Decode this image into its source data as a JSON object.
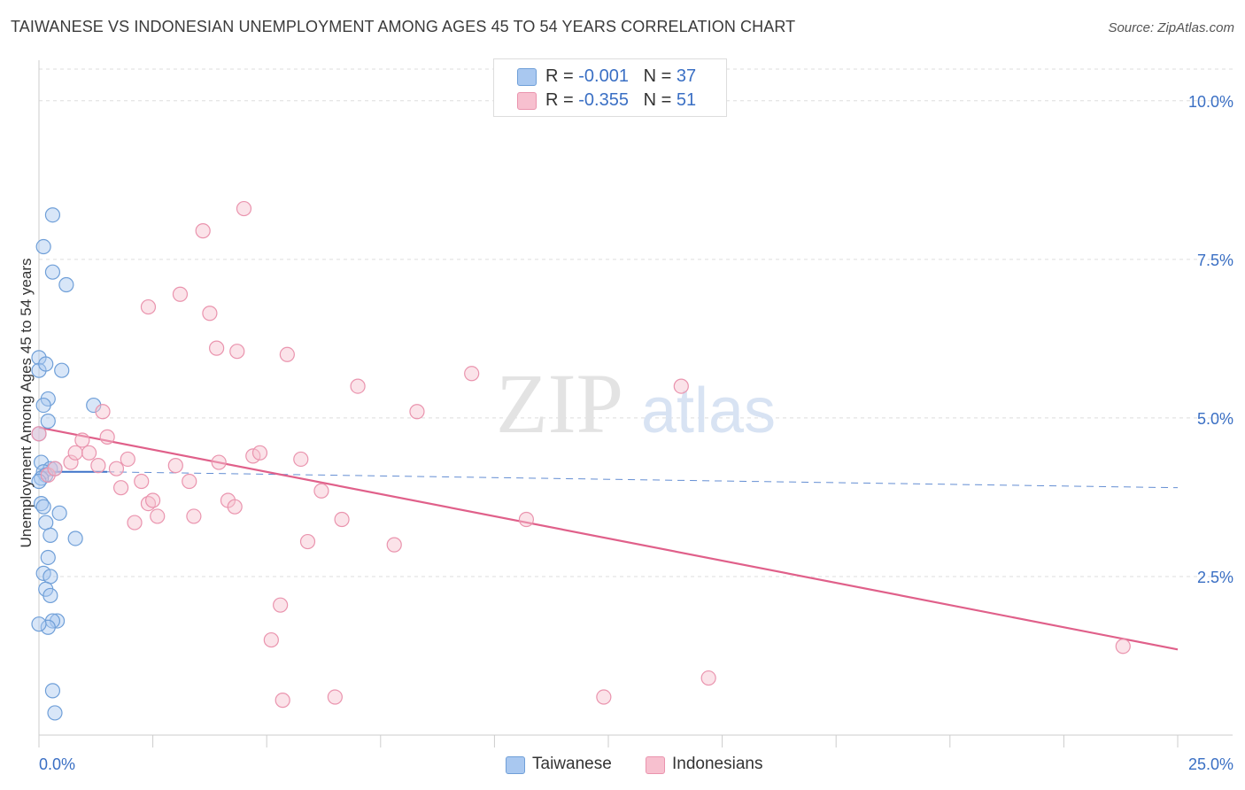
{
  "header": {
    "title": "TAIWANESE VS INDONESIAN UNEMPLOYMENT AMONG AGES 45 TO 54 YEARS CORRELATION CHART",
    "source": "Source: ZipAtlas.com"
  },
  "legend": {
    "rows": [
      {
        "r_label": "R = ",
        "r_value": "-0.001",
        "n_label": "N = ",
        "n_value": "37"
      },
      {
        "r_label": "R = ",
        "r_value": "-0.355",
        "n_label": "N = ",
        "n_value": "51"
      }
    ]
  },
  "watermark": {
    "zip": "ZIP",
    "atlas": "atlas"
  },
  "colors": {
    "taiwanese_fill": "#a9c8f0",
    "taiwanese_stroke": "#6f9fd8",
    "taiwanese_line": "#3d72c8",
    "indonesian_fill": "#f7c0cf",
    "indonesian_stroke": "#ea94ae",
    "indonesian_line": "#e0608a",
    "tick_label": "#3a6fc4",
    "grid": "#dddddd"
  },
  "chart_data": {
    "type": "scatter",
    "title": "TAIWANESE VS INDONESIAN UNEMPLOYMENT AMONG AGES 45 TO 54 YEARS CORRELATION CHART",
    "xlabel": "",
    "ylabel": "Unemployment Among Ages 45 to 54 years",
    "xlim": [
      0,
      25
    ],
    "ylim": [
      0,
      10.5
    ],
    "x_tick_labels": [
      "0.0%",
      "25.0%"
    ],
    "y_ticks": [
      2.5,
      5.0,
      7.5,
      10.0
    ],
    "y_tick_labels": [
      "2.5%",
      "5.0%",
      "7.5%",
      "10.0%"
    ],
    "grid": true,
    "legend_position": "bottom-center",
    "series": [
      {
        "name": "Taiwanese",
        "r": -0.001,
        "n": 37,
        "trend": {
          "x": [
            0.0,
            1.5
          ],
          "y": [
            4.15,
            4.15
          ],
          "dashed_extension": {
            "x": [
              1.5,
              25.0
            ],
            "y": [
              4.15,
              3.9
            ]
          }
        },
        "points": [
          [
            0.3,
            8.2
          ],
          [
            0.1,
            7.7
          ],
          [
            0.3,
            7.3
          ],
          [
            0.6,
            7.1
          ],
          [
            0.0,
            5.95
          ],
          [
            0.0,
            5.75
          ],
          [
            0.5,
            5.75
          ],
          [
            0.15,
            5.85
          ],
          [
            0.2,
            5.3
          ],
          [
            0.1,
            5.2
          ],
          [
            1.2,
            5.2
          ],
          [
            0.2,
            4.95
          ],
          [
            0.0,
            4.75
          ],
          [
            0.05,
            4.3
          ],
          [
            0.25,
            4.2
          ],
          [
            0.1,
            4.15
          ],
          [
            0.35,
            4.2
          ],
          [
            0.15,
            4.1
          ],
          [
            0.05,
            4.05
          ],
          [
            0.0,
            4.0
          ],
          [
            0.05,
            3.65
          ],
          [
            0.1,
            3.6
          ],
          [
            0.45,
            3.5
          ],
          [
            0.15,
            3.35
          ],
          [
            0.25,
            3.15
          ],
          [
            0.8,
            3.1
          ],
          [
            0.2,
            2.8
          ],
          [
            0.1,
            2.55
          ],
          [
            0.25,
            2.5
          ],
          [
            0.15,
            2.3
          ],
          [
            0.25,
            2.2
          ],
          [
            0.4,
            1.8
          ],
          [
            0.3,
            1.8
          ],
          [
            0.2,
            1.7
          ],
          [
            0.3,
            0.7
          ],
          [
            0.35,
            0.35
          ],
          [
            0.0,
            1.75
          ]
        ]
      },
      {
        "name": "Indonesians",
        "r": -0.355,
        "n": 51,
        "trend": {
          "x": [
            0.0,
            25.0
          ],
          "y": [
            4.85,
            1.35
          ]
        },
        "points": [
          [
            0.0,
            4.75
          ],
          [
            0.2,
            4.1
          ],
          [
            0.35,
            4.2
          ],
          [
            0.7,
            4.3
          ],
          [
            0.8,
            4.45
          ],
          [
            0.95,
            4.65
          ],
          [
            1.1,
            4.45
          ],
          [
            1.3,
            4.25
          ],
          [
            1.4,
            5.1
          ],
          [
            1.5,
            4.7
          ],
          [
            1.7,
            4.2
          ],
          [
            1.8,
            3.9
          ],
          [
            1.95,
            4.35
          ],
          [
            2.1,
            3.35
          ],
          [
            2.25,
            4.0
          ],
          [
            2.4,
            3.65
          ],
          [
            2.5,
            3.7
          ],
          [
            2.6,
            3.45
          ],
          [
            2.4,
            6.75
          ],
          [
            3.0,
            4.25
          ],
          [
            3.1,
            6.95
          ],
          [
            3.3,
            4.0
          ],
          [
            3.4,
            3.45
          ],
          [
            3.6,
            7.95
          ],
          [
            3.75,
            6.65
          ],
          [
            3.9,
            6.1
          ],
          [
            3.95,
            4.3
          ],
          [
            4.15,
            3.7
          ],
          [
            4.3,
            3.6
          ],
          [
            4.35,
            6.05
          ],
          [
            4.5,
            8.3
          ],
          [
            4.7,
            4.4
          ],
          [
            4.85,
            4.45
          ],
          [
            5.3,
            2.05
          ],
          [
            5.1,
            1.5
          ],
          [
            5.35,
            0.55
          ],
          [
            5.45,
            6.0
          ],
          [
            5.75,
            4.35
          ],
          [
            5.9,
            3.05
          ],
          [
            6.2,
            3.85
          ],
          [
            6.5,
            0.6
          ],
          [
            6.65,
            3.4
          ],
          [
            7.0,
            5.5
          ],
          [
            7.8,
            3.0
          ],
          [
            8.3,
            5.1
          ],
          [
            9.5,
            5.7
          ],
          [
            10.7,
            3.4
          ],
          [
            12.4,
            0.6
          ],
          [
            14.1,
            5.5
          ],
          [
            14.7,
            0.9
          ],
          [
            23.8,
            1.4
          ]
        ]
      }
    ]
  },
  "bottom_legend": {
    "items": [
      "Taiwanese",
      "Indonesians"
    ]
  }
}
